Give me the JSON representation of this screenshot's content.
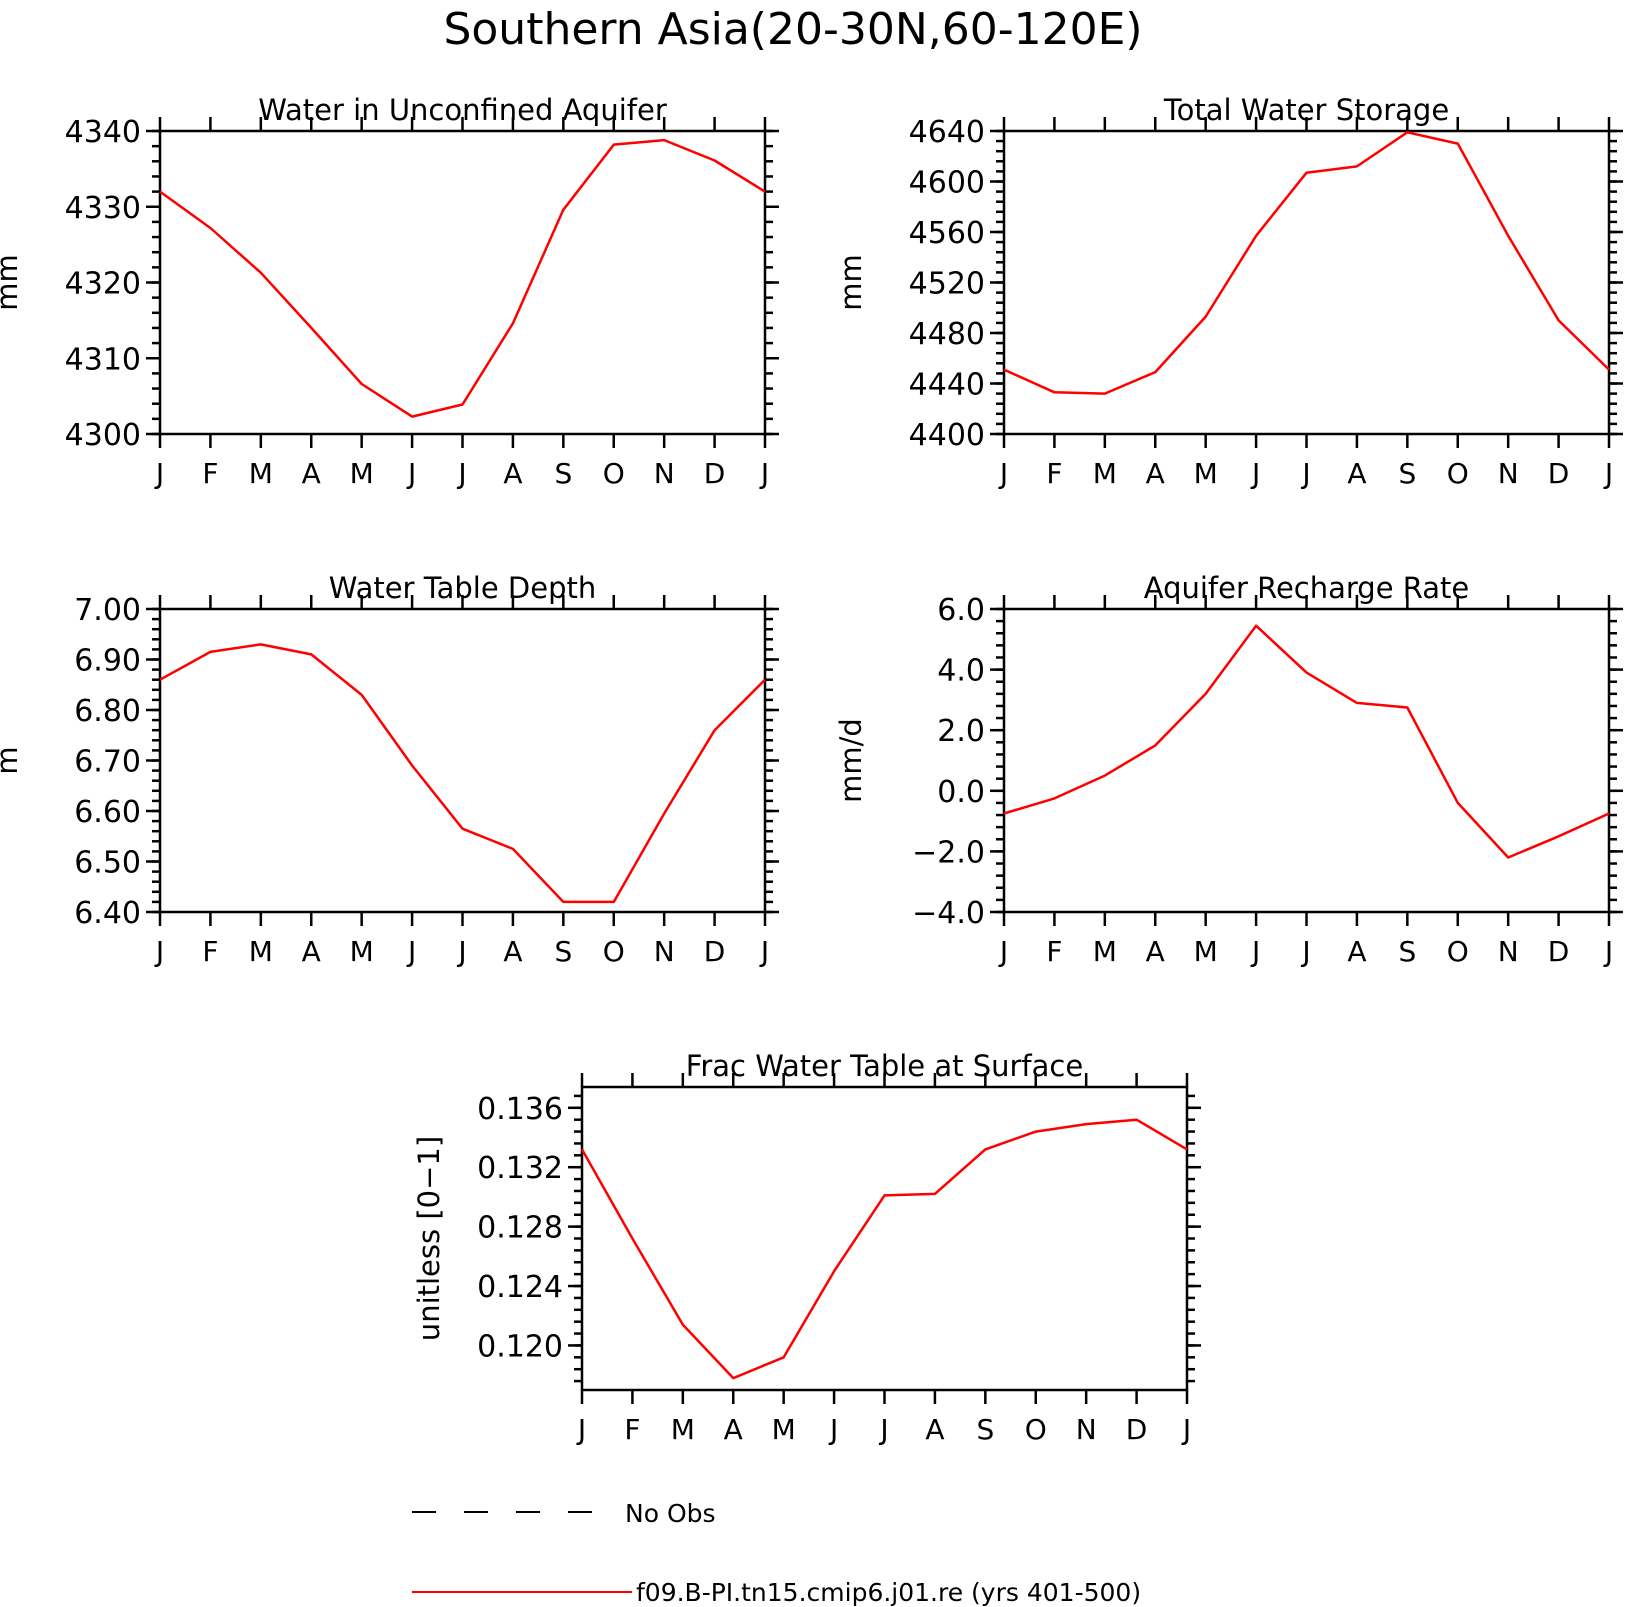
{
  "figure": {
    "title": "Southern Asia(20-30N,60-120E)"
  },
  "colors": {
    "model": "#ff0000",
    "obs": "#000000",
    "axis": "#000000"
  },
  "legend": {
    "items": [
      {
        "label": "No Obs",
        "style": "dashed",
        "color": "#000000"
      },
      {
        "label": "f09.B-PI.tn15.cmip6.j01.re (yrs 401-500)",
        "style": "solid",
        "color": "#ff0000"
      }
    ]
  },
  "chart_data": [
    {
      "type": "line",
      "title": "Water in Unconfined Aquifer",
      "ylabel": "mm",
      "x": [
        "J",
        "F",
        "M",
        "A",
        "M",
        "J",
        "J",
        "A",
        "S",
        "O",
        "N",
        "D",
        "J"
      ],
      "ylim": [
        4300,
        4340
      ],
      "yticks": [
        "4300",
        "4310",
        "4320",
        "4330",
        "4340"
      ],
      "series": [
        {
          "values": [
            4332,
            4327.2,
            4321.3,
            4314,
            4306.6,
            4302.3,
            4303.9,
            4314.6,
            4329.6,
            4338.2,
            4338.8,
            4336.1,
            4332
          ]
        }
      ]
    },
    {
      "type": "line",
      "title": "Total Water Storage",
      "ylabel": "mm",
      "x": [
        "J",
        "F",
        "M",
        "A",
        "M",
        "J",
        "J",
        "A",
        "S",
        "O",
        "N",
        "D",
        "J"
      ],
      "ylim": [
        4400,
        4640
      ],
      "yticks": [
        "4400",
        "4440",
        "4480",
        "4520",
        "4560",
        "4600",
        "4640"
      ],
      "series": [
        {
          "values": [
            4451,
            4433,
            4432,
            4449,
            4493,
            4557,
            4607,
            4612,
            4639,
            4630,
            4557,
            4490,
            4451
          ]
        }
      ]
    },
    {
      "type": "line",
      "title": "Water Table Depth",
      "ylabel": "m",
      "x": [
        "J",
        "F",
        "M",
        "A",
        "M",
        "J",
        "J",
        "A",
        "S",
        "O",
        "N",
        "D",
        "J"
      ],
      "ylim": [
        6.4,
        7.0
      ],
      "yticks": [
        "6.40",
        "6.50",
        "6.60",
        "6.70",
        "6.80",
        "6.90",
        "7.00"
      ],
      "series": [
        {
          "values": [
            6.86,
            6.915,
            6.93,
            6.91,
            6.83,
            6.69,
            6.565,
            6.525,
            6.42,
            6.42,
            6.595,
            6.76,
            6.86
          ]
        }
      ]
    },
    {
      "type": "line",
      "title": "Aquifer Recharge Rate",
      "ylabel": "mm/d",
      "x": [
        "J",
        "F",
        "M",
        "A",
        "M",
        "J",
        "J",
        "A",
        "S",
        "O",
        "N",
        "D",
        "J"
      ],
      "ylim": [
        -4.0,
        6.0
      ],
      "yticks": [
        "−4.0",
        "−2.0",
        "0.0",
        "2.0",
        "4.0",
        "6.0"
      ],
      "series": [
        {
          "values": [
            -0.75,
            -0.25,
            0.5,
            1.5,
            3.2,
            5.45,
            3.9,
            2.9,
            2.75,
            -0.4,
            -2.2,
            -1.5,
            -0.75
          ]
        }
      ]
    },
    {
      "type": "line",
      "title": "Frac Water Table at Surface",
      "ylabel": "unitless [0−1]",
      "x": [
        "J",
        "F",
        "M",
        "A",
        "M",
        "J",
        "J",
        "A",
        "S",
        "O",
        "N",
        "D",
        "J"
      ],
      "ylim": [
        0.117,
        0.1374
      ],
      "yticks": [
        "0.120",
        "0.124",
        "0.128",
        "0.132",
        "0.136"
      ],
      "ytick_values": [
        0.12,
        0.124,
        0.128,
        0.132,
        0.136
      ],
      "series": [
        {
          "values": [
            0.1332,
            0.1272,
            0.1214,
            0.1178,
            0.1192,
            0.125,
            0.1301,
            0.1302,
            0.1332,
            0.1344,
            0.1349,
            0.1352,
            0.1332
          ]
        }
      ]
    }
  ]
}
